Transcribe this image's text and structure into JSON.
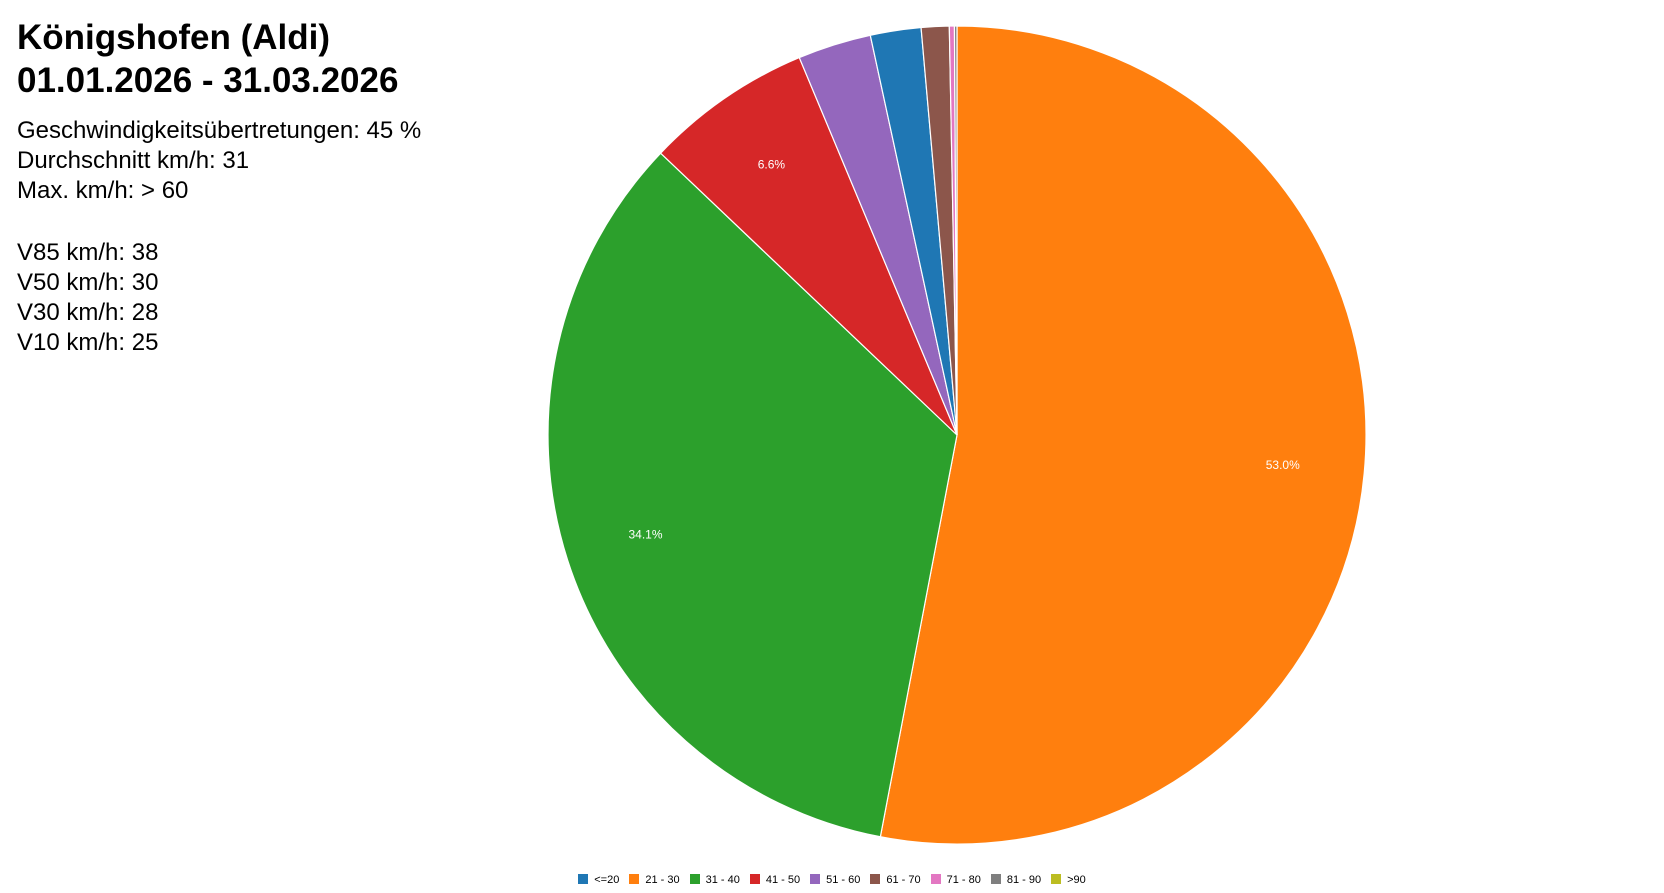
{
  "header": {
    "title_line1": "Königshofen (Aldi)",
    "title_line2": "01.01.2026 - 31.03.2026"
  },
  "stats": {
    "line1": "Geschwindigkeitsübertretungen: 45 %",
    "line2": "Durchschnitt km/h: 31",
    "line3": "Max. km/h: > 60",
    "line4": "V85 km/h: 38",
    "line5": "V50 km/h: 30",
    "line6": "V30 km/h: 28",
    "line7": "V10 km/h: 25"
  },
  "chart_data": {
    "type": "pie",
    "start_angle_deg": 0,
    "direction": "clockwise",
    "slices": [
      {
        "label": "21 - 30",
        "value": 53.0,
        "color": "#ff7f0e",
        "data_label": "53.0%"
      },
      {
        "label": "31 - 40",
        "value": 34.1,
        "color": "#2ca02c",
        "data_label": "34.1%"
      },
      {
        "label": "41 - 50",
        "value": 6.6,
        "color": "#d62728",
        "data_label": "6.6%"
      },
      {
        "label": "51 - 60",
        "value": 2.9,
        "color": "#9467bd"
      },
      {
        "label": "<=20",
        "value": 2.0,
        "color": "#1f77b4"
      },
      {
        "label": "61 - 70",
        "value": 1.1,
        "color": "#8c564b"
      },
      {
        "label": "71 - 80",
        "value": 0.2,
        "color": "#e377c2"
      },
      {
        "label": "81 - 90",
        "value": 0.1,
        "color": "#7f7f7f"
      }
    ],
    "legend": [
      {
        "label": "<=20",
        "color": "#1f77b4"
      },
      {
        "label": "21 - 30",
        "color": "#ff7f0e"
      },
      {
        "label": "31 - 40",
        "color": "#2ca02c"
      },
      {
        "label": "41 - 50",
        "color": "#d62728"
      },
      {
        "label": "51 - 60",
        "color": "#9467bd"
      },
      {
        "label": "61 - 70",
        "color": "#8c564b"
      },
      {
        "label": "71 - 80",
        "color": "#e377c2"
      },
      {
        "label": "81 - 90",
        "color": "#7f7f7f"
      },
      {
        "label": ">90",
        "color": "#bcbd22"
      }
    ],
    "legend_position": "bottom-center"
  }
}
